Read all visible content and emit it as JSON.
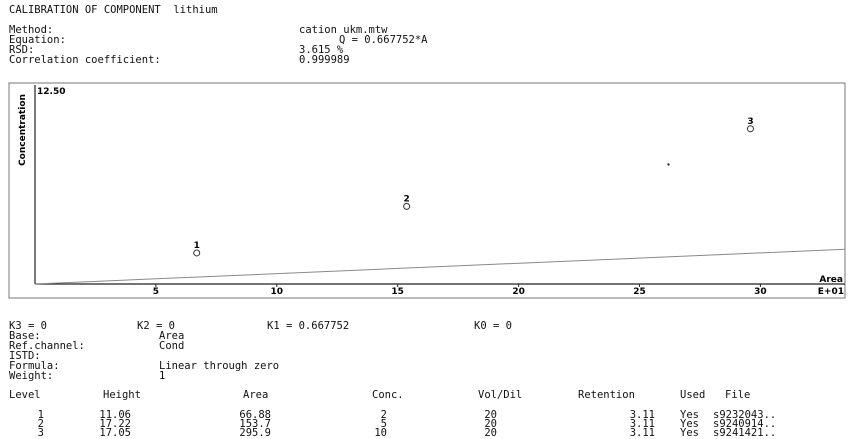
{
  "header": {
    "title": "CALIBRATION OF COMPONENT  lithium",
    "method_label": "Method:",
    "method_value": "cation ukm.mtw",
    "equation_label": "Equation:",
    "equation_value": "Q = 0.667752*A",
    "rsd_label": "RSD:",
    "rsd_value": "3.615 %",
    "corr_label": "Correlation coefficient:",
    "corr_value": "0.999989"
  },
  "chart_data": {
    "type": "scatter",
    "ylabel": "Concentration",
    "xlabel": "Area",
    "x_exponent_label": "E+01",
    "ymax_label": "12.50",
    "xlim": [
      0,
      33.5
    ],
    "ylim": [
      0,
      12.5
    ],
    "x_ticks": [
      5,
      10,
      15,
      20,
      25,
      30
    ],
    "points": [
      {
        "label": "1",
        "x": 6.688,
        "y": 2
      },
      {
        "label": "2",
        "x": 15.37,
        "y": 5
      },
      {
        "label": "3",
        "x": 29.59,
        "y": 10
      }
    ],
    "extra_points": [
      {
        "x": 26.2,
        "y": 7.7
      }
    ],
    "fit_line": {
      "slope": 0.0667752,
      "intercept": 0
    }
  },
  "params": {
    "k3": "K3 = 0",
    "k2": "K2 = 0",
    "k1": "K1 = 0.667752",
    "k0": "K0 = 0",
    "base_label": "Base:",
    "base_value": "Area",
    "refchan_label": "Ref.channel:",
    "refchan_value": "Cond",
    "istd_label": "ISTD:",
    "formula_label": "Formula:",
    "formula_value": "Linear through zero",
    "weight_label": "Weight:",
    "weight_value": "1"
  },
  "levels": {
    "columns": [
      "Level",
      "Height",
      "Area",
      "Conc.",
      "Vol/Dil",
      "Retention",
      "Used",
      "File"
    ],
    "rows": [
      [
        "1",
        "11.06",
        "66.88",
        "2",
        "20",
        "3.11",
        "Yes",
        "s9232043.."
      ],
      [
        "2",
        "17.22",
        "153.7",
        "5",
        "20",
        "3.11",
        "Yes",
        "s9240914.."
      ],
      [
        "3",
        "17.05",
        "295.9",
        "10",
        "20",
        "3.11",
        "Yes",
        "s9241421.."
      ]
    ]
  }
}
